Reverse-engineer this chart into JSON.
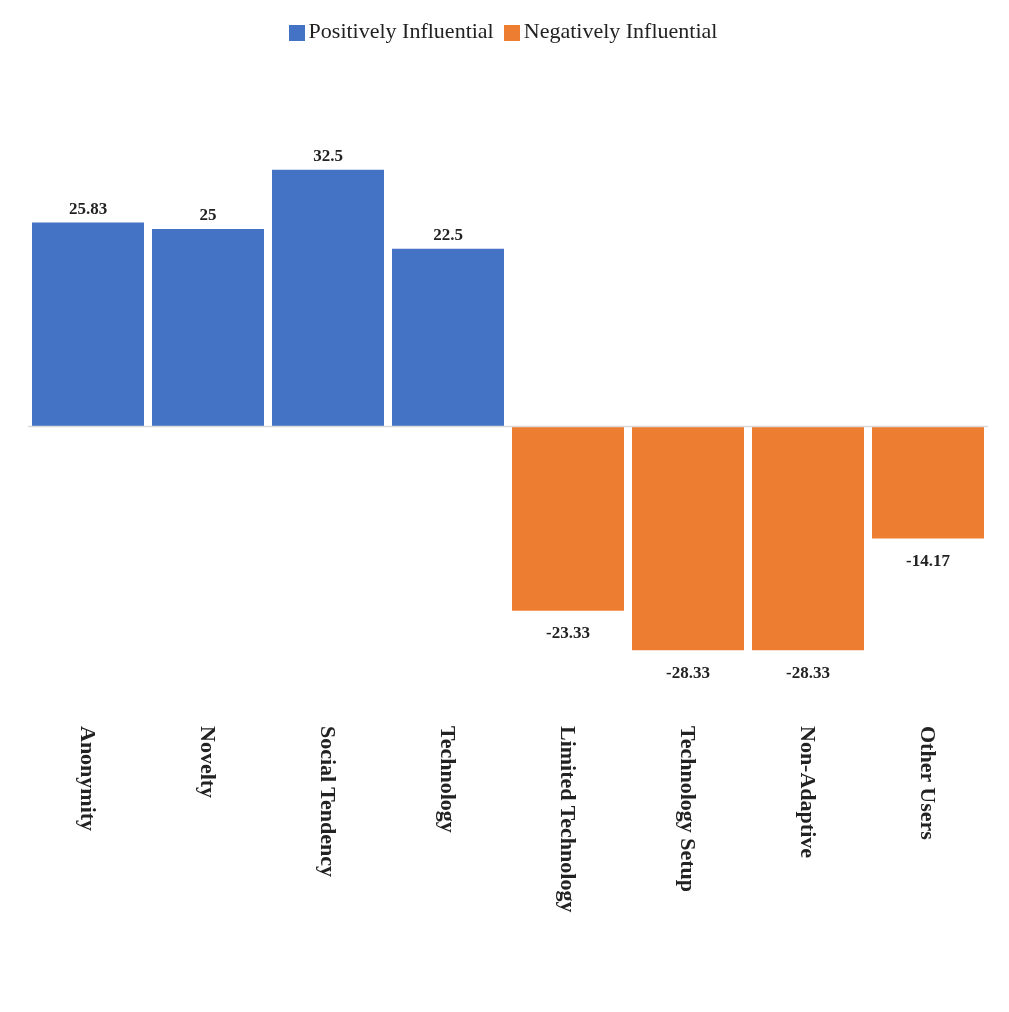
{
  "chart_data": {
    "type": "bar",
    "categories": [
      "Anonymity",
      "Novelty",
      "Social Tendency",
      "Technology",
      "Limited Technology",
      "Technology Setup",
      "Non-Adaptive",
      "Other Users"
    ],
    "series": [
      {
        "name": "Positively Influential",
        "color": "#4472c4",
        "values": [
          25.83,
          25,
          32.5,
          22.5,
          null,
          null,
          null,
          null
        ]
      },
      {
        "name": "Negatively Influential",
        "color": "#ed7d31",
        "values": [
          null,
          null,
          null,
          null,
          -23.33,
          -28.33,
          -28.33,
          -14.17
        ]
      }
    ],
    "stacked": true,
    "data_labels": true,
    "legend": "top",
    "grid": false
  }
}
